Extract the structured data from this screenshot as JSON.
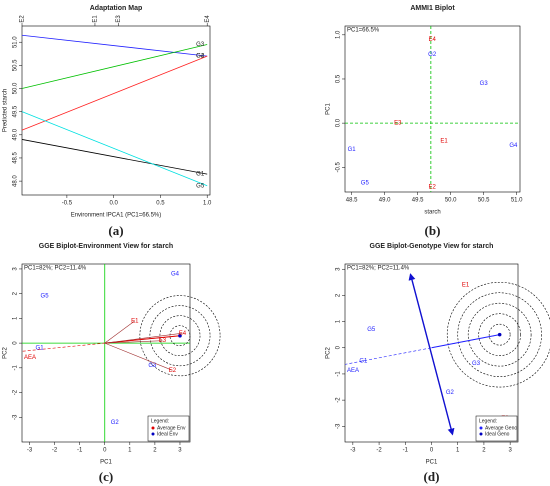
{
  "chart_data": [
    {
      "type": "line",
      "title": "Adaptation Map",
      "caption": "(a)",
      "x_label": "Environment IPCA1 (PC1=66.5%)",
      "y_label": "Predicted starch",
      "x": [
        -0.98,
        1.0
      ],
      "series": [
        {
          "name": "G1",
          "color": "#000000",
          "values": [
            48.9,
            48.15
          ]
        },
        {
          "name": "G2",
          "color": "#2020ff",
          "values": [
            51.15,
            50.7
          ]
        },
        {
          "name": "G3",
          "color": "#00c000",
          "values": [
            50.0,
            50.95
          ]
        },
        {
          "name": "G4",
          "color": "#ff2020",
          "values": [
            49.1,
            50.7
          ]
        },
        {
          "name": "G5",
          "color": "#00e0e0",
          "values": [
            49.5,
            47.9
          ]
        }
      ],
      "xlim": [
        -0.98,
        1.03
      ],
      "ylim": [
        47.7,
        51.35
      ],
      "xticks": [
        -0.5,
        {
          "value": 0,
          "label": "0.0"
        },
        0.5,
        {
          "value": 1,
          "label": "1.0"
        }
      ],
      "yticks": [
        {
          "value": 48,
          "label": "48.0"
        },
        48.5,
        {
          "value": 49,
          "label": "49.0"
        },
        49.5,
        {
          "value": 50,
          "label": "50.0"
        },
        50.5,
        {
          "value": 51,
          "label": "51.0"
        }
      ],
      "top_ticks": [
        {
          "value": -0.98,
          "label": "E2"
        },
        {
          "value": -0.2,
          "label": "E1"
        },
        {
          "value": 0.05,
          "label": "E3"
        },
        {
          "value": 1.0,
          "label": "E4"
        }
      ]
    },
    {
      "type": "scatter",
      "title": "AMMI1 Biplot",
      "subtitle": "PC1=66.5%",
      "caption": "(b)",
      "x_label": "starch",
      "y_label": "PC1",
      "points": [
        {
          "label": "E4",
          "x": 49.72,
          "y": 0.95,
          "color": "#e00000"
        },
        {
          "label": "G2",
          "x": 49.72,
          "y": 0.78,
          "color": "#2020ff"
        },
        {
          "label": "G3",
          "x": 50.5,
          "y": 0.45,
          "color": "#2020ff"
        },
        {
          "label": "E3",
          "x": 49.2,
          "y": 0.0,
          "color": "#e00000"
        },
        {
          "label": "E1",
          "x": 49.9,
          "y": -0.2,
          "color": "#e00000"
        },
        {
          "label": "G4",
          "x": 50.95,
          "y": -0.25,
          "color": "#2020ff"
        },
        {
          "label": "G1",
          "x": 48.5,
          "y": -0.3,
          "color": "#2020ff"
        },
        {
          "label": "G5",
          "x": 48.7,
          "y": -0.68,
          "color": "#2020ff"
        },
        {
          "label": "E2",
          "x": 49.72,
          "y": -0.72,
          "color": "#e00000"
        }
      ],
      "ref_lines": {
        "x": 49.7,
        "y": 0,
        "color": "#00c000",
        "dashed": true
      },
      "xlim": [
        48.4,
        51.05
      ],
      "ylim": [
        -0.78,
        1.1
      ],
      "xticks": [
        48.5,
        {
          "value": 49,
          "label": "49.0"
        },
        49.5,
        {
          "value": 50,
          "label": "50.0"
        },
        50.5,
        {
          "value": 51,
          "label": "51.0"
        }
      ],
      "yticks": [
        -0.5,
        {
          "value": 0,
          "label": "0.0"
        },
        0.5,
        {
          "value": 1,
          "label": "1.0"
        }
      ]
    },
    {
      "type": "biplot",
      "title": "GGE Biplot-Environment View for starch",
      "subtitle": "PC1=82%; PC2=11.4%",
      "caption": "(c)",
      "x_label": "PC1",
      "y_label": "PC2",
      "points": [
        {
          "label": "G5",
          "x": -2.4,
          "y": 1.9,
          "color": "#2020ff"
        },
        {
          "label": "G4",
          "x": 2.8,
          "y": 2.8,
          "color": "#2020ff"
        },
        {
          "label": "G2",
          "x": 0.4,
          "y": -3.2,
          "color": "#2020ff"
        },
        {
          "label": "G3",
          "x": 1.9,
          "y": -0.9,
          "color": "#2020ff"
        },
        {
          "label": "G1",
          "x": -2.6,
          "y": -0.2,
          "color": "#2020ff"
        },
        {
          "label": "E1",
          "x": 1.2,
          "y": 0.9,
          "color": "#e00000",
          "arrow": true
        },
        {
          "label": "E3",
          "x": 2.3,
          "y": 0.1,
          "color": "#e00000",
          "arrow": true
        },
        {
          "label": "E2",
          "x": 2.7,
          "y": -1.1,
          "color": "#e00000",
          "arrow": true
        },
        {
          "label": "E4",
          "x": 3.1,
          "y": 0.4,
          "color": "#e00000",
          "arrow": true
        }
      ],
      "ref_lines": {
        "x": 0,
        "y": 0,
        "color": "#00d000",
        "dashed": false
      },
      "circles": {
        "center": [
          3.0,
          0.3
        ],
        "radii": [
          0.4,
          0.8,
          1.2,
          1.6
        ]
      },
      "aea_label": "AEA",
      "aea_color": "#e00000",
      "legend": {
        "title": "Legend:",
        "items": [
          {
            "label": "Average Env",
            "color": "#e00000"
          },
          {
            "label": "Ideal Env",
            "color": "#0000c0"
          }
        ]
      },
      "legend_position": "bottom-right",
      "xlim": [
        -3.3,
        3.4
      ],
      "ylim": [
        -4,
        3.2
      ],
      "xticks": [
        -3,
        -2,
        -1,
        0,
        1,
        2,
        3
      ],
      "yticks": [
        -3,
        -2,
        -1,
        0,
        1,
        2,
        3
      ]
    },
    {
      "type": "biplot",
      "title": "GGE Biplot-Genotype View for starch",
      "subtitle": "PC1=82%; PC2=11.4%",
      "caption": "(d)",
      "x_label": "PC1",
      "y_label": "PC2",
      "points": [
        {
          "label": "G5",
          "x": -2.3,
          "y": 0.7,
          "color": "#2020ff"
        },
        {
          "label": "G1",
          "x": -2.6,
          "y": -0.5,
          "color": "#2020ff"
        },
        {
          "label": "G3",
          "x": 1.7,
          "y": -0.6,
          "color": "#2020ff"
        },
        {
          "label": "G2",
          "x": 0.7,
          "y": -1.7,
          "color": "#2020ff"
        },
        {
          "label": "E1",
          "x": 1.3,
          "y": 2.4,
          "color": "#e00000"
        },
        {
          "label": "E2",
          "x": 2.8,
          "y": -2.7,
          "color": "#e00000"
        }
      ],
      "circles": {
        "center": [
          2.6,
          0.5
        ],
        "radii": [
          0.4,
          0.8,
          1.2,
          1.6,
          2.0
        ]
      },
      "perp": {
        "x": [
          -0.8,
          0.8
        ],
        "y": [
          2.8,
          -3.3
        ]
      },
      "aea_label": "AEA",
      "aea_color": "#2020ff",
      "legend": {
        "title": "Legend:",
        "items": [
          {
            "label": "Average Geno",
            "color": "#2020ff"
          },
          {
            "label": "Ideal Geno",
            "color": "#0000c0"
          }
        ]
      },
      "legend_position": "bottom-right",
      "xlim": [
        -3.3,
        3.3
      ],
      "ylim": [
        -3.6,
        3.2
      ],
      "xticks": [
        -3,
        -2,
        -1,
        0,
        1,
        2,
        3
      ],
      "yticks": [
        -3,
        -2,
        -1,
        0,
        1,
        2,
        3
      ]
    }
  ]
}
